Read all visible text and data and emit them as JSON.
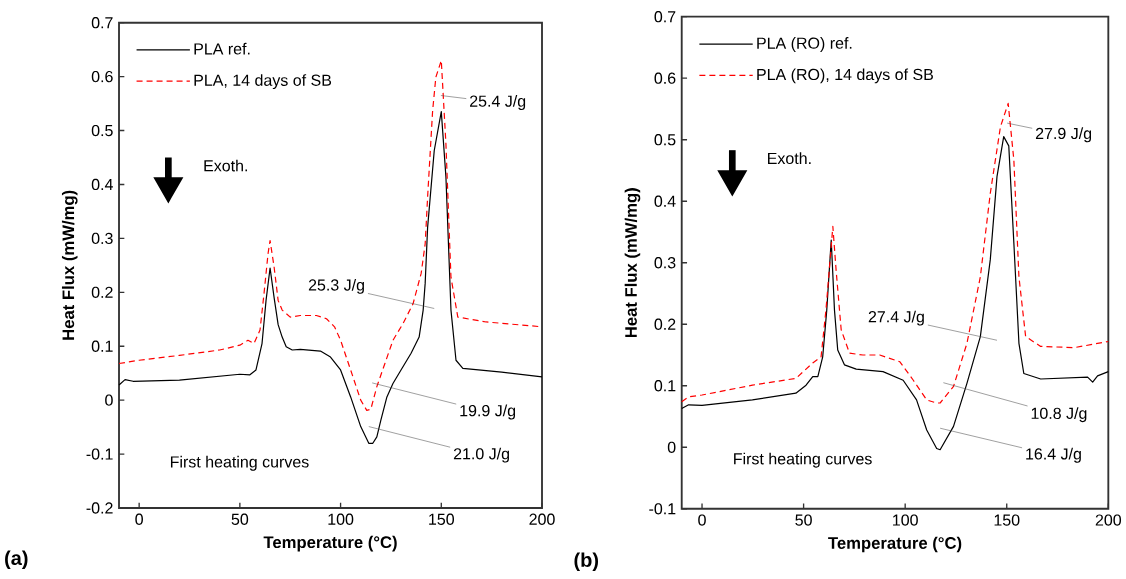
{
  "chart_data": [
    {
      "type": "line",
      "xlabel": "Temperature (°C)",
      "ylabel": "Heat Flux (mW/mg)",
      "xlim": [
        -10,
        200
      ],
      "ylim": [
        -0.2,
        0.7
      ],
      "xticks": [
        0,
        50,
        100,
        150,
        200
      ],
      "yticks": [
        -0.2,
        -0.1,
        0,
        0.1,
        0.2,
        0.3,
        0.4,
        0.5,
        0.6,
        0.7
      ],
      "legend": "top left",
      "series": [
        {
          "name": "PLA ref.",
          "color": "#000000",
          "line_style": "solid",
          "x": [
            -10,
            -7,
            -3,
            20,
            50,
            55,
            58,
            61,
            63,
            65,
            67,
            69,
            71,
            73,
            76,
            80,
            90,
            95,
            100,
            105,
            110,
            114,
            116,
            118,
            120,
            123,
            126,
            130,
            135,
            139,
            141,
            142,
            143.2,
            146.5,
            150,
            152.3,
            154.8,
            157.3,
            160.7,
            180,
            200
          ],
          "values": [
            0.028,
            0.038,
            0.035,
            0.037,
            0.048,
            0.047,
            0.056,
            0.105,
            0.185,
            0.245,
            0.19,
            0.14,
            0.117,
            0.099,
            0.093,
            0.094,
            0.091,
            0.08,
            0.056,
            0.006,
            -0.049,
            -0.08,
            -0.08,
            -0.068,
            -0.037,
            0.006,
            0.031,
            0.056,
            0.087,
            0.117,
            0.167,
            0.217,
            0.32,
            0.463,
            0.535,
            0.414,
            0.167,
            0.074,
            0.059,
            0.052,
            0.043
          ]
        },
        {
          "name": "PLA, 14 days of SB",
          "color": "#ff0000",
          "line_style": "dashed",
          "x": [
            -10,
            0,
            20,
            40,
            50,
            54,
            57,
            60,
            62,
            64,
            65,
            67,
            69,
            71,
            75,
            80,
            88,
            93,
            97,
            100,
            105,
            110,
            113,
            115,
            118,
            122,
            126,
            131,
            136,
            140,
            142,
            143.2,
            145.7,
            147.3,
            150,
            152.3,
            154.8,
            158.2,
            172.3,
            200
          ],
          "values": [
            0.068,
            0.074,
            0.083,
            0.093,
            0.102,
            0.111,
            0.105,
            0.13,
            0.198,
            0.272,
            0.296,
            0.247,
            0.185,
            0.167,
            0.154,
            0.157,
            0.157,
            0.151,
            0.136,
            0.111,
            0.056,
            0.0,
            -0.019,
            -0.017,
            0.025,
            0.068,
            0.111,
            0.142,
            0.179,
            0.235,
            0.29,
            0.376,
            0.537,
            0.599,
            0.63,
            0.475,
            0.228,
            0.154,
            0.145,
            0.136
          ]
        }
      ],
      "annotations": [
        "Exoth.",
        "First heating curves",
        "25.3 J/g",
        {
          "text": "25.4 J/g",
          "x": 149.8,
          "y": 0.565
        },
        "19.9 J/g",
        "21.0 J/g",
        "(a)"
      ]
    },
    {
      "type": "line",
      "xlabel": "Temperature (°C)",
      "ylabel": "Heat Flux (mW/mg)",
      "xlim": [
        -10,
        200
      ],
      "ylim": [
        -0.1,
        0.7
      ],
      "xticks": [
        0,
        50,
        100,
        150,
        200
      ],
      "yticks": [
        -0.1,
        0,
        0.1,
        0.2,
        0.3,
        0.4,
        0.5,
        0.6,
        0.7
      ],
      "legend": "top left",
      "series": [
        {
          "name": "PLA (RO) ref.",
          "color": "#000000",
          "line_style": "solid",
          "x": [
            -10,
            -6.6,
            0,
            24.8,
            46.2,
            51.2,
            54.5,
            57,
            59.4,
            61.4,
            63.6,
            65.2,
            66.8,
            70.1,
            75.9,
            89.1,
            99,
            105.6,
            110.6,
            115.5,
            117.2,
            123.8,
            130.4,
            137,
            141.9,
            145.2,
            148.5,
            151,
            153.5,
            156,
            158.4,
            166.7,
            189.8,
            192.3,
            194.7,
            200
          ],
          "values": [
            0.063,
            0.069,
            0.068,
            0.077,
            0.088,
            0.101,
            0.115,
            0.115,
            0.147,
            0.223,
            0.337,
            0.223,
            0.158,
            0.134,
            0.127,
            0.123,
            0.109,
            0.077,
            0.028,
            -0.002,
            -0.004,
            0.034,
            0.104,
            0.18,
            0.305,
            0.44,
            0.505,
            0.49,
            0.332,
            0.169,
            0.12,
            0.111,
            0.114,
            0.106,
            0.116,
            0.123
          ]
        },
        {
          "name": "PLA (RO), 14 days of SB",
          "color": "#ff0000",
          "line_style": "dashed",
          "x": [
            -10,
            -6.6,
            0,
            24.8,
            46.2,
            54.5,
            58.6,
            61,
            64.4,
            66,
            68.5,
            72.6,
            79.2,
            87.5,
            97.4,
            104,
            110.6,
            115.5,
            117.2,
            123.8,
            130.4,
            137,
            141.9,
            146.9,
            150.7,
            153.5,
            156,
            159.3,
            166.7,
            183.2,
            200
          ],
          "values": [
            0.074,
            0.082,
            0.085,
            0.101,
            0.112,
            0.137,
            0.147,
            0.223,
            0.359,
            0.288,
            0.191,
            0.153,
            0.15,
            0.15,
            0.139,
            0.109,
            0.077,
            0.072,
            0.072,
            0.099,
            0.169,
            0.277,
            0.413,
            0.521,
            0.559,
            0.467,
            0.277,
            0.18,
            0.164,
            0.162,
            0.172
          ]
        }
      ],
      "annotations": [
        "Exoth.",
        "First heating curves",
        "27.4 J/g",
        {
          "text": "27.9 J/g",
          "x": 150.2,
          "y": 0.527
        },
        "10.8 J/g",
        "16.4 J/g",
        "(b)"
      ]
    }
  ]
}
